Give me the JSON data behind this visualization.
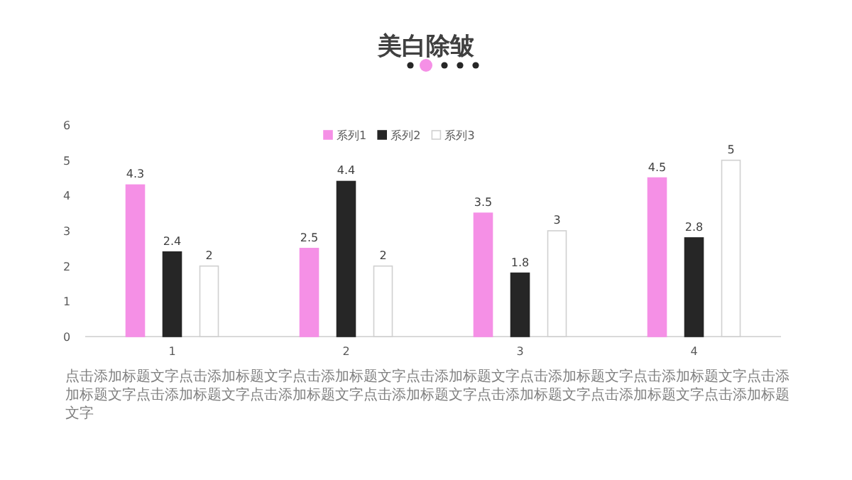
{
  "chart_data": {
    "type": "bar",
    "title": "美白除皱",
    "categories": [
      "1",
      "2",
      "3",
      "4"
    ],
    "series": [
      {
        "name": "系列1",
        "color": "#f590e6",
        "values": [
          4.3,
          2.5,
          3.5,
          4.5
        ]
      },
      {
        "name": "系列2",
        "color": "#262626",
        "values": [
          2.4,
          4.4,
          1.8,
          2.8
        ]
      },
      {
        "name": "系列3",
        "color": "#ffffff",
        "values": [
          2,
          2,
          3,
          5
        ]
      }
    ],
    "ylim": [
      0,
      6
    ],
    "yticks": [
      0,
      1,
      2,
      3,
      4,
      5,
      6
    ],
    "grid": false,
    "legend": "top",
    "data_labels": true,
    "annotations": [
      "点击添加标题文字点击添加标题文字点击添加标题文字点击添加标题文字点击添加标题文字点击添加标题文字点击添加标题文字点击添加标题文字点击添加标题文字点击添加标题文字点击添加标题文字点击添加标题文字点击添加标题文字"
    ]
  }
}
